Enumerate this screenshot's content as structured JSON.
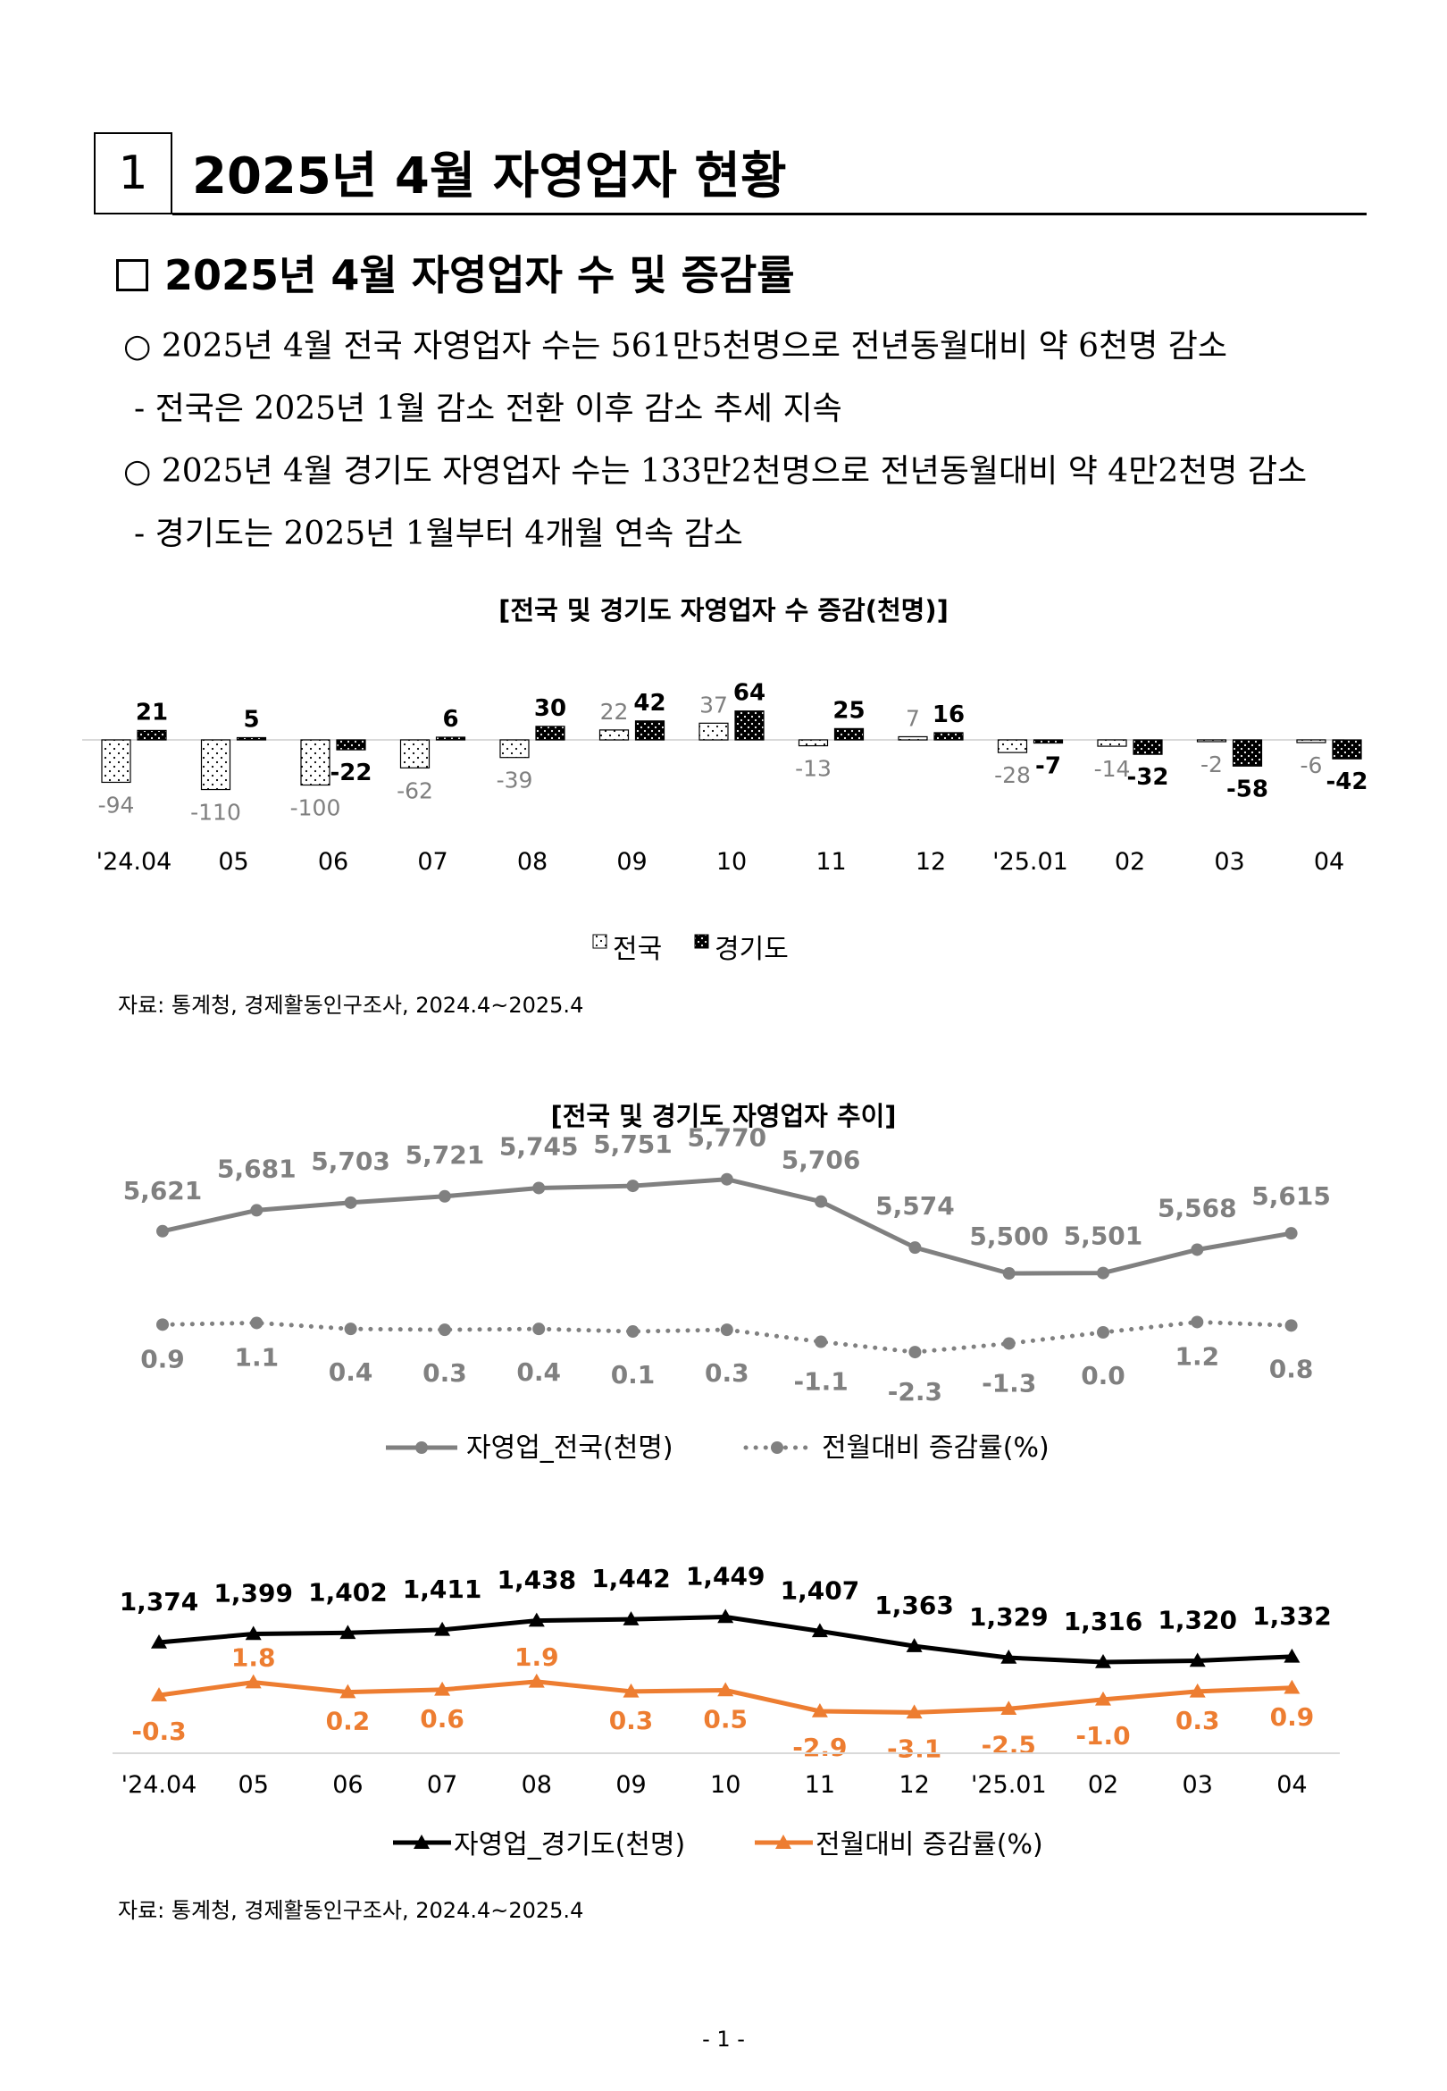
{
  "section": {
    "number": "1",
    "title": "2025년 4월 자영업자 현황"
  },
  "subsection": {
    "title": "2025년 4월 자영업자 수 및 증감률"
  },
  "bullets": [
    "○ 2025년 4월 전국 자영업자 수는 561만5천명으로 전년동월대비 약 6천명 감소",
    "- 전국은 2025년 1월 감소 전환 이후 감소 추세 지속",
    "○ 2025년 4월 경기도 자영업자 수는 133만2천명으로 전년동월대비 약 4만2천명 감소",
    "- 경기도는 2025년 1월부터 4개월 연속 감소"
  ],
  "chart1_title": "[전국 및 경기도 자영업자 수 증감(천명)]",
  "source1": "자료: 통계청, 경제활동인구조사, 2024.4~2025.4",
  "chart2_title": "[전국 및 경기도 자영업자 추이]",
  "source2": "자료: 통계청, 경제활동인구조사, 2024.4~2025.4",
  "page_number": "- 1 -",
  "chart_data": [
    {
      "type": "bar",
      "title": "[전국 및 경기도 자영업자 수 증감(천명)]",
      "categories": [
        "'24.04",
        "05",
        "06",
        "07",
        "08",
        "09",
        "10",
        "11",
        "12",
        "'25.01",
        "02",
        "03",
        "04"
      ],
      "series": [
        {
          "name": "전국",
          "values": [
            -94,
            -110,
            -100,
            -62,
            -39,
            22,
            37,
            -13,
            7,
            -28,
            -14,
            -2,
            -6
          ],
          "color": "#ffffff",
          "label_color": "#808080"
        },
        {
          "name": "경기도",
          "values": [
            21,
            5,
            -22,
            6,
            30,
            42,
            64,
            25,
            16,
            -7,
            -32,
            -58,
            -42
          ],
          "color": "#000000",
          "label_color": "#000000"
        }
      ],
      "ylabel": "천명"
    },
    {
      "type": "line",
      "categories": [
        "'24.04",
        "05",
        "06",
        "07",
        "08",
        "09",
        "10",
        "11",
        "12",
        "'25.01",
        "02",
        "03",
        "04"
      ],
      "series": [
        {
          "name": "자영업_전국(천명)",
          "values": [
            5621,
            5681,
            5703,
            5721,
            5745,
            5751,
            5770,
            5706,
            5574,
            5500,
            5501,
            5568,
            5615
          ],
          "labels": [
            "5,621",
            "5,681",
            "5,703",
            "5,721",
            "5,745",
            "5,751",
            "5,770",
            "5,706",
            "5,574",
            "5,500",
            "5,501",
            "5,568",
            "5,615"
          ],
          "color": "#808080",
          "marker": "circle",
          "dash": "solid"
        },
        {
          "name": "전월대비 증감률(%)",
          "values": [
            0.9,
            1.1,
            0.4,
            0.3,
            0.4,
            0.1,
            0.3,
            -1.1,
            -2.3,
            -1.3,
            0.0,
            1.2,
            0.8
          ],
          "labels": [
            "0.9",
            "1.1",
            "0.4",
            "0.3",
            "0.4",
            "0.1",
            "0.3",
            "-1.1",
            "-2.3",
            "-1.3",
            "0.0",
            "1.2",
            "0.8"
          ],
          "color": "#808080",
          "marker": "circle",
          "dash": "dotted"
        }
      ]
    },
    {
      "type": "line",
      "categories": [
        "'24.04",
        "05",
        "06",
        "07",
        "08",
        "09",
        "10",
        "11",
        "12",
        "'25.01",
        "02",
        "03",
        "04"
      ],
      "series": [
        {
          "name": "자영업_경기도(천명)",
          "values": [
            1374,
            1399,
            1402,
            1411,
            1438,
            1442,
            1449,
            1407,
            1363,
            1329,
            1316,
            1320,
            1332
          ],
          "labels": [
            "1,374",
            "1,399",
            "1,402",
            "1,411",
            "1,438",
            "1,442",
            "1,449",
            "1,407",
            "1,363",
            "1,329",
            "1,316",
            "1,320",
            "1,332"
          ],
          "color": "#000000",
          "marker": "triangle",
          "dash": "solid"
        },
        {
          "name": "전월대비 증감률(%)",
          "values": [
            -0.3,
            1.8,
            0.2,
            0.6,
            1.9,
            0.3,
            0.5,
            -2.9,
            -3.1,
            -2.5,
            -1.0,
            0.3,
            0.9
          ],
          "labels": [
            "-0.3",
            "1.8",
            "0.2",
            "0.6",
            "1.9",
            "0.3",
            "0.5",
            "-2.9",
            "-3.1",
            "-2.5",
            "-1.0",
            "0.3",
            "0.9"
          ],
          "color": "#ED7D31",
          "marker": "triangle",
          "dash": "solid"
        }
      ]
    }
  ]
}
